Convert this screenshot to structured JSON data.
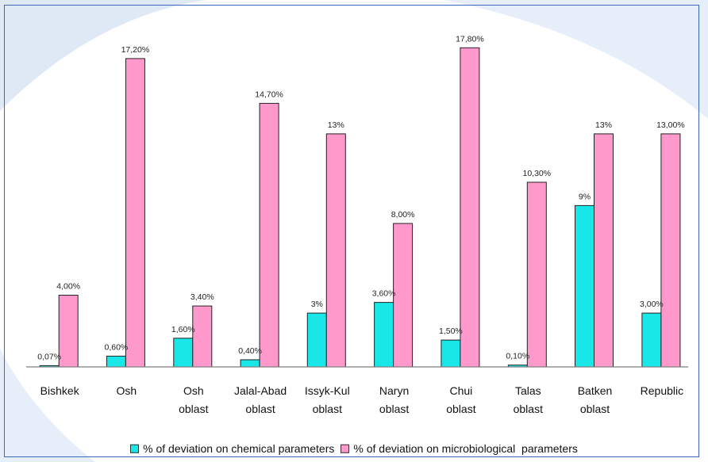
{
  "chart_data": {
    "type": "bar",
    "categories": [
      [
        "Bishkek"
      ],
      [
        "Osh"
      ],
      [
        "Osh",
        "oblast"
      ],
      [
        "Jalal-Abad",
        "oblast"
      ],
      [
        "Issyk-Kul",
        "oblast"
      ],
      [
        "Naryn",
        "oblast"
      ],
      [
        "Chui",
        "oblast"
      ],
      [
        "Talas",
        "oblast"
      ],
      [
        "Batken",
        "oblast"
      ],
      [
        "Republic"
      ]
    ],
    "series": [
      {
        "name": "% of deviation on chemical parameters",
        "color": "#19e6e6",
        "values": [
          0.07,
          0.6,
          1.6,
          0.4,
          3.0,
          3.6,
          1.5,
          0.1,
          9.0,
          3.0
        ],
        "labels": [
          "0,07%",
          "0,60%",
          "1,60%",
          "0,40%",
          "3%",
          "3,60%",
          "1,50%",
          "0,10%",
          "9%",
          "3,00%"
        ]
      },
      {
        "name": "% of deviation on microbiological  parameters",
        "color": "#ff99cc",
        "values": [
          4.0,
          17.2,
          3.4,
          14.7,
          13.0,
          8.0,
          17.8,
          10.3,
          13.0,
          13.0
        ],
        "labels": [
          "4,00%",
          "17,20%",
          "3,40%",
          "14,70%",
          "13%",
          "8,00%",
          "17,80%",
          "10,30%",
          "13%",
          "13,00%"
        ]
      }
    ],
    "ylim": [
      0,
      20
    ],
    "grid": false,
    "legend_position": "bottom"
  }
}
